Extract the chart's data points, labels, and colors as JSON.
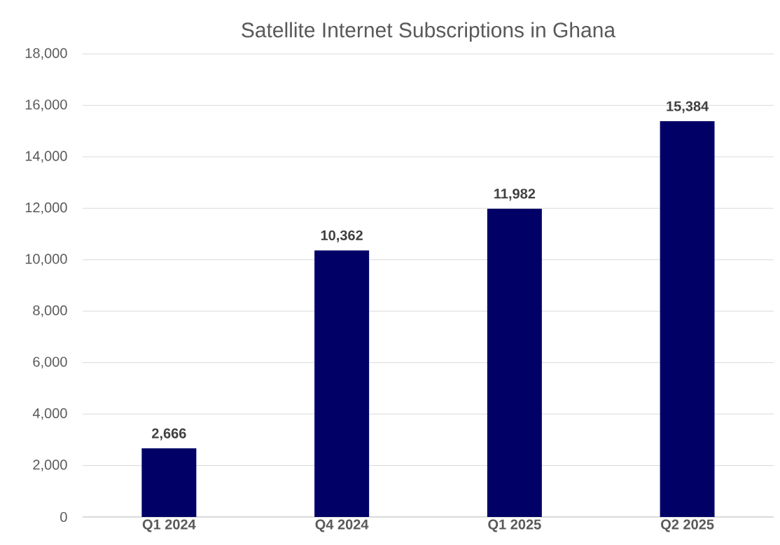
{
  "chart_data": {
    "type": "bar",
    "title": "Satellite Internet Subscriptions in Ghana",
    "categories": [
      "Q1 2024",
      "Q4 2024",
      "Q1 2025",
      "Q2 2025"
    ],
    "values": [
      2666,
      10362,
      11982,
      15384
    ],
    "value_labels": [
      "2,666",
      "10,362",
      "11,982",
      "15,384"
    ],
    "color": "#000066",
    "ylim": [
      0,
      18000
    ],
    "yticks": [
      0,
      {
        "value": 2000,
        "label": "2,000"
      },
      {
        "value": 4000,
        "label": "4,000"
      },
      {
        "value": 6000,
        "label": "6,000"
      },
      {
        "value": 8000,
        "label": "8,000"
      },
      {
        "value": 10000,
        "label": "10,000"
      },
      {
        "value": 12000,
        "label": "12,000"
      },
      {
        "value": 14000,
        "label": "14,000"
      },
      {
        "value": 16000,
        "label": "16,000"
      },
      {
        "value": 18000,
        "label": "18,000"
      }
    ],
    "grid": "y"
  }
}
